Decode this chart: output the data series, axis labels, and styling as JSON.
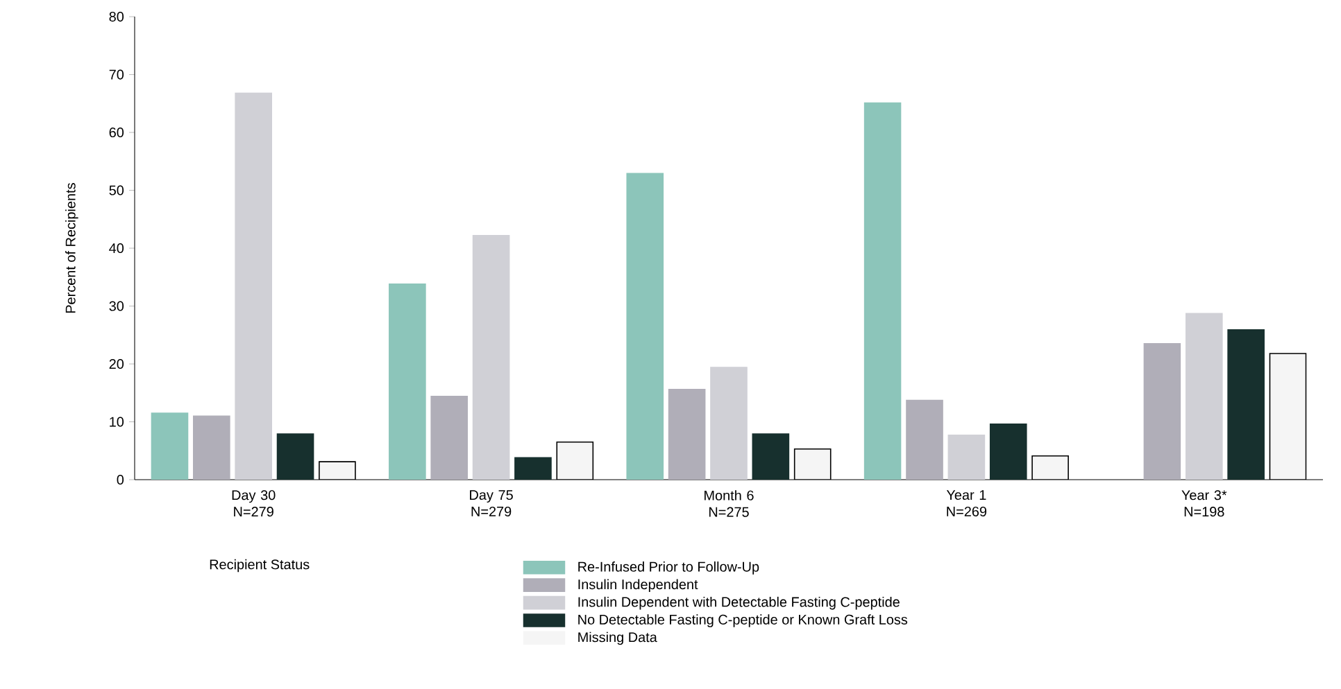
{
  "chart_data": {
    "type": "bar",
    "ylabel": "Percent of Recipients",
    "legend_title": "Recipient Status",
    "categories": [
      "Day 30 N=279",
      "Day 75 N=279",
      "Month 6 N=275",
      "Year 1 N=269",
      "Year 3* N=198"
    ],
    "series": [
      {
        "name": "Re-Infused Prior to Follow-Up",
        "color": "#8cc5ba",
        "values": [
          11.5,
          33.8,
          52.9,
          65.1,
          null
        ]
      },
      {
        "name": "Insulin Independent",
        "color": "#b0aeb8",
        "values": [
          11,
          14.4,
          15.6,
          13.7,
          23.5
        ]
      },
      {
        "name": "Insulin Dependent with Detectable Fasting C-peptide",
        "color": "#d0d0d6",
        "values": [
          66.8,
          42.2,
          19.4,
          7.7,
          28.7
        ]
      },
      {
        "name": "No Detectable Fasting C-peptide or Known Graft Loss",
        "color": "#17302e",
        "values": [
          7.9,
          3.8,
          7.9,
          9.6,
          25.9
        ]
      },
      {
        "name": "Missing Data",
        "color": "#f5f5f5",
        "values": [
          3.1,
          6.5,
          5.3,
          4.1,
          21.8
        ]
      }
    ],
    "ylim": [
      0,
      80
    ],
    "yticks": [
      0,
      10,
      20,
      30,
      40,
      50,
      60,
      70,
      80
    ],
    "grid": false,
    "legend": "bottom"
  }
}
